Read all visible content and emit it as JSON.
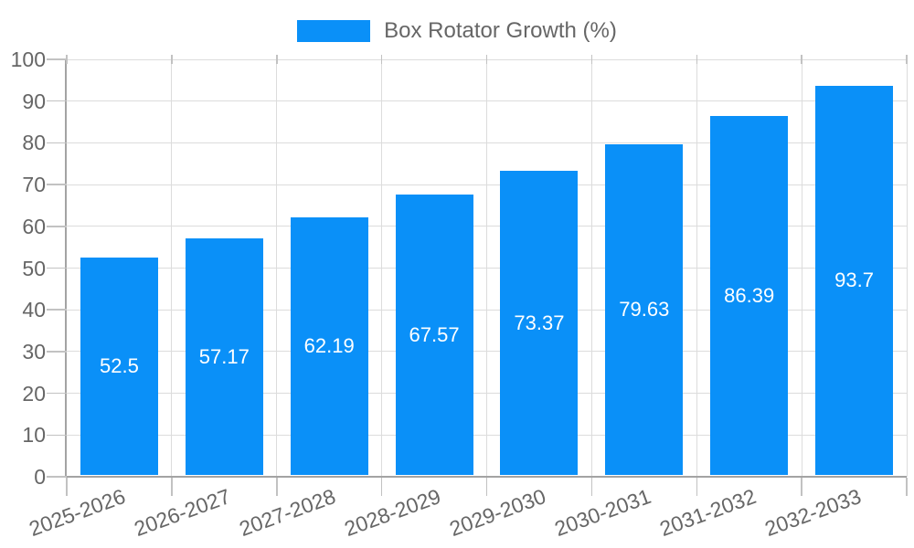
{
  "chart_data": {
    "type": "bar",
    "title": "Box Rotator Growth (%)",
    "categories": [
      "2025-2026",
      "2026-2027",
      "2027-2028",
      "2028-2029",
      "2029-2030",
      "2030-2031",
      "2031-2032",
      "2032-2033"
    ],
    "values": [
      52.5,
      57.17,
      62.19,
      67.57,
      73.37,
      79.63,
      86.39,
      93.7
    ],
    "value_labels": [
      "52.5",
      "57.17",
      "62.19",
      "67.57",
      "73.37",
      "79.63",
      "86.39",
      "93.7"
    ],
    "xlabel": "",
    "ylabel": "",
    "ylim": [
      0,
      100
    ],
    "ytick_step": 10,
    "yticks": [
      0,
      10,
      20,
      30,
      40,
      50,
      60,
      70,
      80,
      90,
      100
    ],
    "grid": true,
    "legend_position": "top",
    "x_label_rotation_deg": -20,
    "colors": {
      "bar": "#0A90F8",
      "axis_text": "#666666",
      "legend_text": "#666666",
      "gridline": "#DCDCDC",
      "axis_line": "#A3A3A3",
      "tick": "#C2C2C2",
      "value_label": "#FFFFFF",
      "background": "#FFFFFF"
    }
  }
}
